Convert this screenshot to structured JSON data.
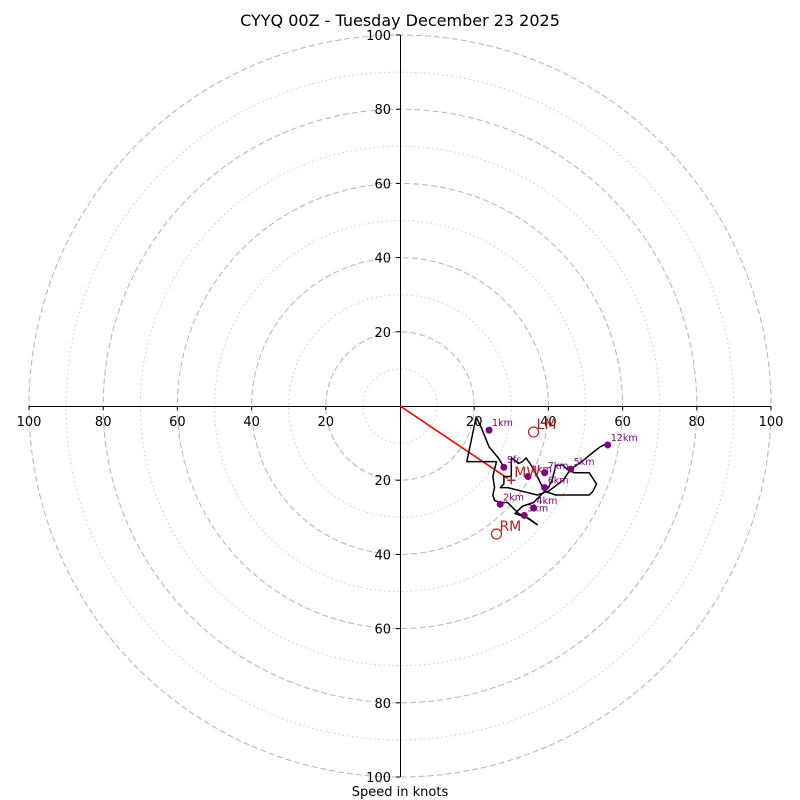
{
  "chart_data": {
    "type": "hodograph",
    "title": "CYYQ 00Z - Tuesday December 23 2025",
    "xlabel": "Speed in knots",
    "range": [
      -100,
      100
    ],
    "rings_major": [
      20,
      40,
      60,
      80,
      100
    ],
    "rings_minor": [
      10,
      30,
      50,
      70,
      90
    ],
    "x_tick_labels": [
      "100",
      "80",
      "60",
      "40",
      "20",
      "20",
      "40",
      "60",
      "80",
      "100"
    ],
    "x_tick_values": [
      -100,
      -80,
      -60,
      -40,
      -20,
      20,
      40,
      60,
      80,
      100
    ],
    "y_tick_labels_top": [
      "100",
      "80",
      "60",
      "40",
      "20"
    ],
    "y_tick_values_top": [
      100,
      80,
      60,
      40,
      20
    ],
    "y_tick_labels_bottom": [
      "20",
      "40",
      "60",
      "80",
      "100"
    ],
    "y_tick_values_bottom": [
      -20,
      -40,
      -60,
      -80,
      -100
    ],
    "trace": [
      [
        28,
        -16.5
      ],
      [
        26.5,
        -14
      ],
      [
        24,
        -11
      ],
      [
        22,
        -6
      ],
      [
        20.5,
        -3
      ],
      [
        18,
        -15
      ],
      [
        26,
        -15
      ],
      [
        25,
        -19
      ],
      [
        25.5,
        -22
      ],
      [
        25,
        -24
      ],
      [
        25.5,
        -25.5
      ],
      [
        27,
        -26
      ],
      [
        29,
        -26
      ],
      [
        32,
        -29
      ],
      [
        35,
        -30.5
      ],
      [
        37,
        -32
      ],
      [
        34,
        -30
      ],
      [
        31,
        -29
      ],
      [
        33,
        -27
      ],
      [
        36,
        -26
      ],
      [
        38,
        -24
      ],
      [
        40,
        -22
      ],
      [
        41,
        -20
      ],
      [
        42,
        -16
      ],
      [
        44,
        -16
      ],
      [
        45,
        -17
      ],
      [
        47,
        -18
      ],
      [
        51,
        -18
      ],
      [
        53,
        -21
      ],
      [
        52,
        -23
      ],
      [
        51,
        -24
      ],
      [
        47,
        -24
      ],
      [
        42,
        -24
      ],
      [
        39,
        -23
      ],
      [
        38,
        -21
      ],
      [
        37,
        -19
      ],
      [
        36,
        -17
      ],
      [
        35,
        -15.5
      ],
      [
        34,
        -14
      ],
      [
        33,
        -15
      ],
      [
        32,
        -15.5
      ],
      [
        30,
        -14
      ],
      [
        30,
        -19
      ],
      [
        28,
        -19
      ],
      [
        28,
        -21
      ],
      [
        27,
        -22
      ],
      [
        29,
        -22
      ],
      [
        33,
        -23
      ],
      [
        37,
        -24
      ],
      [
        40,
        -23
      ],
      [
        44,
        -20
      ],
      [
        46,
        -17
      ],
      [
        49,
        -15
      ],
      [
        52,
        -12.5
      ],
      [
        54,
        -11
      ],
      [
        56,
        -10
      ]
    ],
    "height_markers": [
      {
        "label": "Sfc",
        "x": 28,
        "y": -16.5
      },
      {
        "label": "1km",
        "x": 24,
        "y": -6.5
      },
      {
        "label": "2km",
        "x": 27,
        "y": -26.5
      },
      {
        "label": "3km",
        "x": 33.5,
        "y": -29.5
      },
      {
        "label": "4km",
        "x": 36,
        "y": -27.5
      },
      {
        "label": "5km",
        "x": 46,
        "y": -17
      },
      {
        "label": "6km",
        "x": 39,
        "y": -22
      },
      {
        "label": "7km",
        "x": 39,
        "y": -18
      },
      {
        "label": "8km",
        "x": 34.5,
        "y": -19
      },
      {
        "label": "12km",
        "x": 56,
        "y": -10.5
      }
    ],
    "storm_motion": {
      "lm": {
        "label": "LM",
        "x": 36,
        "y": -7
      },
      "rm": {
        "label": "RM",
        "x": 26,
        "y": -34.5
      },
      "mw": {
        "label": "MW",
        "x": 30,
        "y": -20
      }
    },
    "shear_vector": {
      "from": [
        0,
        0
      ],
      "to": [
        29,
        -19.5
      ]
    },
    "colors": {
      "trace": "#000000",
      "markers": "#800080",
      "storm_motion": "#b22222",
      "shear": "#ff0000",
      "grid": "#bbbbbb"
    }
  }
}
